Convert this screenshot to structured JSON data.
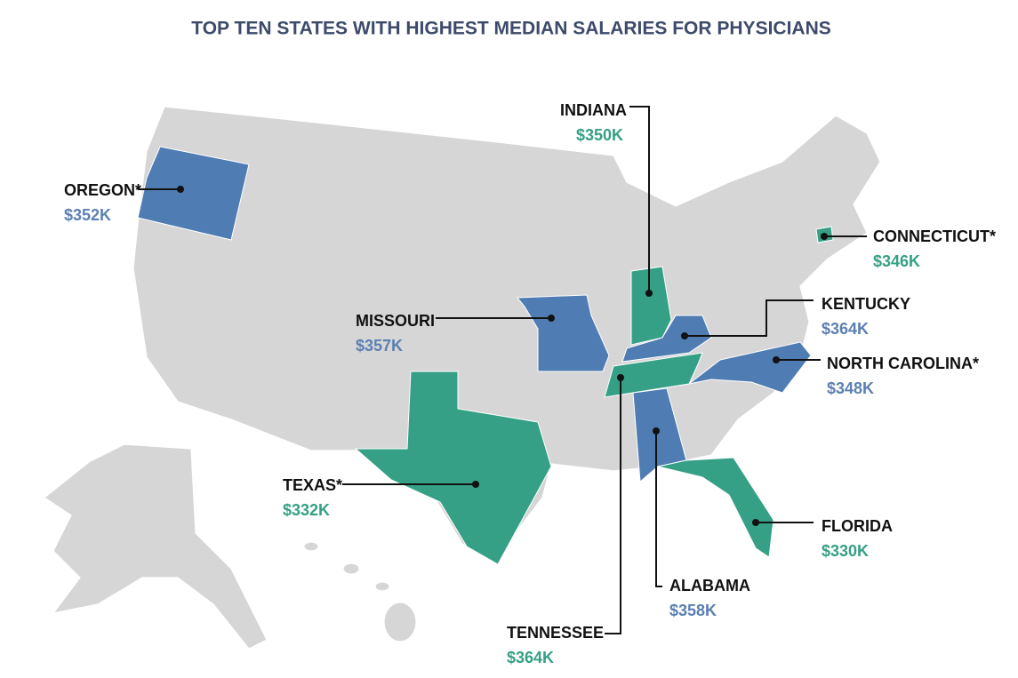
{
  "title": "TOP TEN STATES WITH HIGHEST MEDIAN SALARIES FOR PHYSICIANS",
  "states": [
    {
      "name": "INDIANA",
      "salary": "$350K"
    },
    {
      "name": "OREGON*",
      "salary": "$352K"
    },
    {
      "name": "CONNECTICUT*",
      "salary": "$346K"
    },
    {
      "name": "KENTUCKY",
      "salary": "$364K"
    },
    {
      "name": "MISSOURI",
      "salary": "$357K"
    },
    {
      "name": "NORTH CAROLINA*",
      "salary": "$348K"
    },
    {
      "name": "TEXAS*",
      "salary": "$332K"
    },
    {
      "name": "FLORIDA",
      "salary": "$330K"
    },
    {
      "name": "ALABAMA",
      "salary": "$358K"
    },
    {
      "name": "TENNESSEE",
      "salary": "$364K"
    }
  ]
}
